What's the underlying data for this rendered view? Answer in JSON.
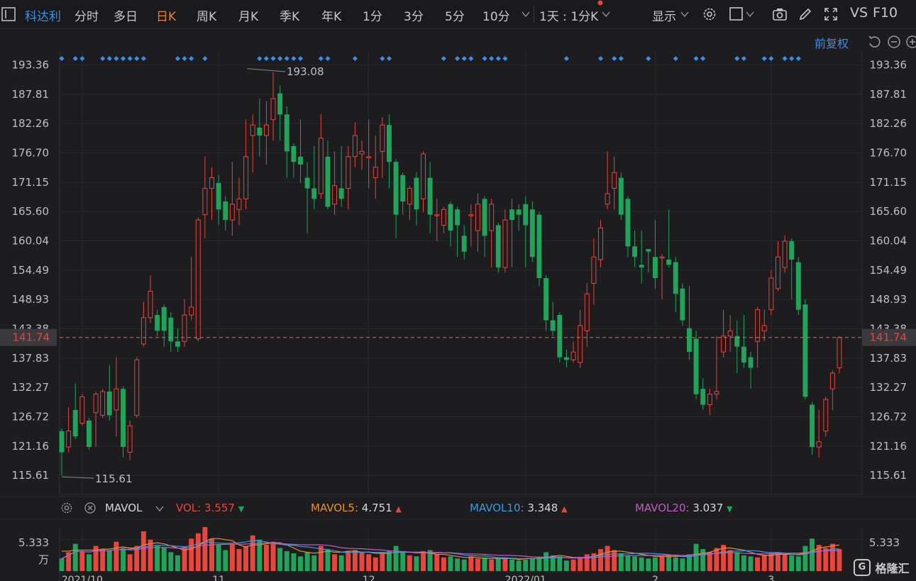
{
  "toolbar": {
    "stock_name": "科达利",
    "tabs": [
      "分时",
      "多日",
      "日K",
      "周K",
      "月K",
      "季K",
      "年K",
      "1分",
      "3分",
      "5分",
      "10分"
    ],
    "active_tab": "日K",
    "interval_select": "1天 : 1分K",
    "display_label": "显示",
    "vs_label": "VS",
    "f10_label": "F10"
  },
  "chart_controls": {
    "adjust_label": "前复权"
  },
  "colors": {
    "up": "#e8453c",
    "down": "#22a35a",
    "accent": "#3d8ee8",
    "active_tab": "#f07f2c",
    "mavol5": "#e79136",
    "mavol10": "#3a9bd9",
    "mavol20": "#c25cc6",
    "price_line": "#f0693a"
  },
  "price_axis": {
    "labels": [
      "193.36",
      "187.81",
      "182.26",
      "176.70",
      "171.15",
      "165.60",
      "160.04",
      "154.49",
      "148.93",
      "143.38",
      "137.83",
      "132.27",
      "126.72",
      "121.16",
      "115.61"
    ],
    "current": "141.74",
    "max_label": "193.08",
    "min_label": "115.61"
  },
  "date_axis": [
    "2021/10",
    "11",
    "12",
    "2022/01",
    "2",
    "3"
  ],
  "volume_panel": {
    "indicator": "MAVOL",
    "vol_label": "VOL:",
    "vol_value": "3.557",
    "mavol5_label": "MAVOL5:",
    "mavol5_value": "4.751",
    "mavol10_label": "MAVOL10:",
    "mavol10_value": "3.348",
    "mavol20_label": "MAVOL20:",
    "mavol20_value": "3.037",
    "axis_value": "5.333",
    "axis_unit": "万"
  },
  "watermark": "格隆汇",
  "chart_data": {
    "type": "candlestick",
    "ylim": [
      112,
      196
    ],
    "candles": [
      [
        124,
        120,
        124.5,
        115.6
      ],
      [
        121,
        124,
        128.5,
        120
      ],
      [
        128,
        123,
        133,
        122.5
      ],
      [
        125.5,
        130.5,
        131,
        125
      ],
      [
        126,
        121,
        126.5,
        120.5
      ],
      [
        127.5,
        131,
        131.5,
        121
      ],
      [
        127,
        131.5,
        132,
        126.5
      ],
      [
        131.5,
        127,
        136.5,
        126
      ],
      [
        128,
        132,
        138,
        123
      ],
      [
        132,
        121,
        132.5,
        119
      ],
      [
        120,
        125,
        126,
        118.5
      ],
      [
        127,
        137.5,
        138,
        126.5
      ],
      [
        140.5,
        145.5,
        148.5,
        140
      ],
      [
        145.5,
        150.5,
        153.5,
        144.5
      ],
      [
        146,
        143,
        147,
        142
      ],
      [
        147.5,
        143,
        148,
        140
      ],
      [
        145.5,
        141,
        146.5,
        139
      ],
      [
        141,
        140,
        143.5,
        139
      ],
      [
        141,
        146,
        149,
        140
      ],
      [
        146,
        147.5,
        157,
        145
      ],
      [
        141.5,
        164,
        164.5,
        141
      ],
      [
        165,
        170,
        176,
        160.5
      ],
      [
        170,
        172,
        174,
        164
      ],
      [
        171,
        166,
        172.5,
        163
      ],
      [
        167.5,
        164,
        168.5,
        162
      ],
      [
        164,
        167,
        175,
        161
      ],
      [
        166,
        168,
        172,
        163
      ],
      [
        168,
        176,
        183,
        166
      ],
      [
        180,
        182,
        184,
        173
      ],
      [
        181.5,
        180,
        187,
        176
      ],
      [
        180,
        182,
        186.5,
        174.5
      ],
      [
        183,
        187,
        192,
        179
      ],
      [
        188,
        184,
        189.5,
        179
      ],
      [
        184,
        177,
        185.5,
        172
      ],
      [
        178,
        175,
        178.5,
        172
      ],
      [
        176,
        174.5,
        183,
        171
      ],
      [
        172,
        170,
        175,
        161.5
      ],
      [
        170,
        168,
        178,
        166
      ],
      [
        169,
        179.5,
        184,
        168
      ],
      [
        176,
        166.5,
        179,
        166
      ],
      [
        167,
        170.5,
        177,
        165
      ],
      [
        170,
        168,
        178,
        166.5
      ],
      [
        170,
        176,
        178,
        166
      ],
      [
        176,
        180,
        182.5,
        174
      ],
      [
        176.5,
        177,
        179,
        173.5
      ],
      [
        176,
        176,
        183,
        170
      ],
      [
        172,
        174,
        180,
        168
      ],
      [
        177,
        182,
        183.5,
        172
      ],
      [
        182,
        175,
        184,
        170
      ],
      [
        175,
        165,
        175.5,
        160.5
      ],
      [
        172.5,
        167.5,
        173,
        165
      ],
      [
        167,
        170,
        170.5,
        164
      ],
      [
        172,
        166,
        173,
        163
      ],
      [
        168,
        176.5,
        177,
        165.5
      ],
      [
        172,
        165,
        175,
        161.5
      ],
      [
        165,
        165,
        168,
        160
      ],
      [
        163,
        166,
        166.5,
        161.5
      ],
      [
        167,
        162,
        167.5,
        159
      ],
      [
        166,
        163,
        166.5,
        157
      ],
      [
        161,
        158,
        163,
        156.5
      ],
      [
        165,
        165,
        167,
        159
      ],
      [
        162,
        167,
        169,
        158
      ],
      [
        168,
        161,
        168.5,
        157
      ],
      [
        162,
        167,
        168,
        155
      ],
      [
        163,
        155,
        163.5,
        154
      ],
      [
        155,
        164,
        166,
        154
      ],
      [
        166,
        164,
        168,
        155
      ],
      [
        166,
        165,
        167,
        162
      ],
      [
        167,
        163,
        168.5,
        155
      ],
      [
        166,
        157,
        167.5,
        156
      ],
      [
        165,
        153,
        165.5,
        151.5
      ],
      [
        153,
        145,
        153.5,
        143
      ],
      [
        145,
        143,
        148.5,
        142
      ],
      [
        146,
        138,
        146.5,
        137
      ],
      [
        138,
        137.5,
        139.5,
        136
      ],
      [
        137.5,
        139,
        141,
        137
      ],
      [
        137,
        144,
        147,
        136
      ],
      [
        143,
        150,
        152,
        140
      ],
      [
        152,
        157,
        160.5,
        148
      ],
      [
        156.5,
        162.5,
        164,
        155
      ],
      [
        167,
        169,
        177,
        166
      ],
      [
        170,
        173,
        176,
        166
      ],
      [
        172,
        165,
        173,
        164
      ],
      [
        168,
        159,
        168.5,
        157
      ],
      [
        159,
        157,
        162,
        155
      ],
      [
        155.5,
        155,
        162,
        152
      ],
      [
        158.5,
        158,
        158.5,
        154
      ],
      [
        157,
        153,
        164,
        151
      ],
      [
        157,
        157,
        157.5,
        149
      ],
      [
        156.5,
        155.5,
        166,
        155
      ],
      [
        156,
        150,
        157,
        146.5
      ],
      [
        151,
        145,
        152,
        144
      ],
      [
        143.5,
        139,
        151.5,
        137.5
      ],
      [
        141.5,
        131,
        143,
        130
      ],
      [
        132,
        129,
        134,
        128
      ],
      [
        129,
        131,
        132,
        127
      ],
      [
        131,
        131.5,
        142,
        130
      ],
      [
        139,
        142,
        147,
        138
      ],
      [
        142,
        143,
        146,
        139
      ],
      [
        142,
        140,
        145,
        135
      ],
      [
        140,
        137,
        146,
        136
      ],
      [
        138,
        136,
        139,
        132
      ],
      [
        141,
        147,
        147.5,
        136
      ],
      [
        143,
        144,
        147,
        141
      ],
      [
        147,
        153,
        154.5,
        146
      ],
      [
        151,
        157,
        160,
        150.5
      ],
      [
        155,
        160,
        161,
        154
      ],
      [
        160,
        156.5,
        160.5,
        149
      ],
      [
        156,
        147,
        157,
        146
      ],
      [
        148,
        130.5,
        149,
        130
      ],
      [
        129,
        121,
        129.5,
        119.5
      ],
      [
        121,
        122,
        128,
        119
      ],
      [
        124,
        130,
        130.5,
        123
      ],
      [
        132,
        135,
        135.5,
        128
      ],
      [
        136,
        141.74,
        142,
        135
      ]
    ],
    "volumes": [
      1.2,
      1.8,
      2.6,
      1.9,
      1.6,
      2.4,
      2.1,
      2.0,
      2.8,
      2.2,
      1.6,
      2.4,
      3.8,
      3.0,
      2.4,
      2.2,
      1.8,
      1.5,
      2.3,
      3.1,
      3.6,
      4.2,
      3.1,
      2.5,
      2.0,
      2.6,
      2.1,
      2.4,
      3.4,
      3.0,
      2.5,
      2.8,
      2.2,
      1.9,
      1.7,
      1.4,
      1.8,
      1.5,
      2.4,
      2.1,
      1.6,
      1.5,
      1.9,
      2.0,
      1.8,
      1.6,
      1.3,
      1.7,
      1.9,
      2.4,
      1.8,
      1.5,
      1.4,
      1.9,
      2.0,
      1.6,
      1.3,
      1.4,
      1.2,
      1.1,
      1.4,
      1.2,
      1.3,
      1.1,
      1.2,
      1.3,
      1.1,
      1.0,
      1.1,
      1.2,
      1.3,
      1.8,
      1.5,
      1.4,
      1.0,
      1.1,
      1.3,
      1.6,
      1.7,
      2.1,
      2.4,
      2.0,
      1.7,
      1.5,
      1.4,
      1.3,
      1.2,
      1.3,
      1.4,
      1.5,
      1.3,
      1.2,
      1.6,
      2.6,
      2.1,
      1.8,
      2.2,
      2.5,
      2.0,
      1.8,
      1.5,
      1.4,
      1.3,
      1.5,
      1.7,
      1.8,
      1.6,
      1.5,
      1.4,
      2.4,
      3.1,
      2.5,
      2.2,
      2.6,
      2.1
    ],
    "mavol5_line": [
      1.9,
      1.9,
      2.0,
      2.0,
      2.0,
      2.0,
      2.1,
      2.1,
      2.2,
      2.3,
      2.2,
      2.2,
      2.5,
      2.6,
      2.7,
      2.6,
      2.4,
      2.2,
      2.0,
      2.1,
      2.4,
      2.8,
      3.1,
      3.1,
      3.0,
      2.9,
      2.5,
      2.3,
      2.5,
      2.5,
      2.6,
      2.7,
      2.7,
      2.5,
      2.2,
      1.9,
      1.8,
      1.7,
      1.8,
      1.9,
      1.8,
      1.8,
      1.9,
      1.9,
      1.8,
      1.8,
      1.7,
      1.7,
      1.7,
      1.8,
      1.8,
      1.8,
      1.8,
      1.8,
      1.7,
      1.6,
      1.6,
      1.5,
      1.4,
      1.3,
      1.3,
      1.3,
      1.2,
      1.2,
      1.2,
      1.2,
      1.2,
      1.1,
      1.2,
      1.2,
      1.2,
      1.3,
      1.4,
      1.5,
      1.4,
      1.3,
      1.3,
      1.3,
      1.4,
      1.6,
      1.8,
      1.9,
      1.9,
      1.8,
      1.7,
      1.6,
      1.5,
      1.4,
      1.4,
      1.4,
      1.4,
      1.4,
      1.5,
      1.6,
      1.7,
      1.8,
      2.0,
      2.2,
      2.2,
      2.1,
      2.0,
      1.8,
      1.6,
      1.5,
      1.5,
      1.6,
      1.6,
      1.6,
      1.6,
      1.7,
      1.9,
      2.2,
      2.3,
      2.4,
      2.5
    ]
  }
}
